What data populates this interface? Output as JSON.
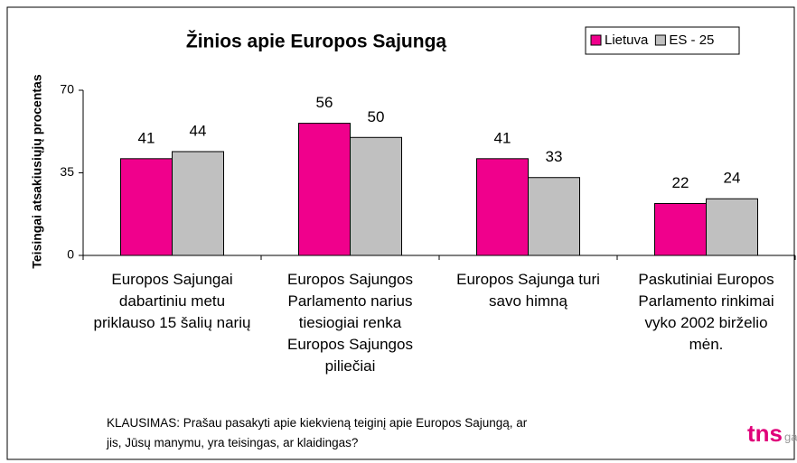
{
  "chart_data": {
    "type": "bar",
    "title": "Žinios apie Europos Sajungą",
    "y_label": "Teisingai atsakiusiųjų procentas",
    "categories": [
      "Europos Sajungai dabartiniu metu priklauso 15 šalių narių",
      "Europos Sajungos Parlamento narius tiesiogiai renka Europos Sajungos piliečiai",
      "Europos Sajunga turi savo himną",
      "Paskutiniai Europos Parlamento rinkimai vyko 2002 birželio mėn."
    ],
    "series": [
      {
        "name": "Lietuva",
        "color": "#f0008c",
        "values": [
          41,
          56,
          41,
          22
        ]
      },
      {
        "name": "ES - 25",
        "color": "#c0c0c0",
        "values": [
          44,
          50,
          33,
          24
        ]
      }
    ],
    "ylim": [
      0,
      70
    ],
    "yticks": [
      0,
      35,
      70
    ],
    "note": "KLAUSIMAS: Prašau pasakyti apie kiekvieną teiginį apie Europos Sajungą, ar jis, Jūsų manymu, yra teisingas, ar klaidingas?",
    "logo": {
      "main": "tns",
      "sub": "gallup"
    }
  }
}
